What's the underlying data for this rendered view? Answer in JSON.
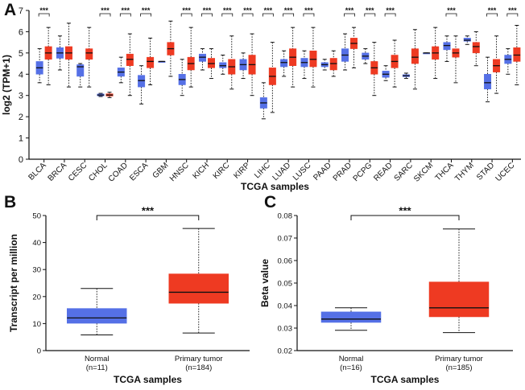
{
  "panels": {
    "A": {
      "letter": "A"
    },
    "B": {
      "letter": "B"
    },
    "C": {
      "letter": "C"
    }
  },
  "colors": {
    "normal": "#5570e6",
    "tumor": "#ee3a22"
  },
  "chart_data": [
    {
      "panel": "A",
      "type": "box",
      "xlabel": "TCGA samples",
      "ylabel": "log2 (TPM+1)",
      "ylim": [
        0,
        7
      ],
      "yticks": [
        0,
        1,
        2,
        3,
        4,
        5,
        6,
        7
      ],
      "grid": false,
      "categories": [
        "BLCA",
        "BRCA",
        "CESC",
        "CHOL",
        "COAD",
        "ESCA",
        "GBM",
        "HNSC",
        "KICH",
        "KIRC",
        "KIRP",
        "LIHC",
        "LUAD",
        "LUSC",
        "PAAD",
        "PRAD",
        "PCPG",
        "READ",
        "SARC",
        "SKCM",
        "THCA",
        "THYM",
        "STAD",
        "UCEC"
      ],
      "significance_label": "***",
      "groups": [
        {
          "category": "BLCA",
          "sig": true,
          "normal": {
            "min": 3.6,
            "q1": 4.0,
            "median": 4.3,
            "q3": 4.6,
            "max": 5.2
          },
          "tumor": {
            "min": 3.5,
            "q1": 4.7,
            "median": 5.0,
            "q3": 5.3,
            "max": 6.2
          }
        },
        {
          "category": "BRCA",
          "sig": false,
          "normal": {
            "min": 4.2,
            "q1": 4.75,
            "median": 5.0,
            "q3": 5.25,
            "max": 5.8
          },
          "tumor": {
            "min": 3.4,
            "q1": 4.7,
            "median": 5.0,
            "q3": 5.3,
            "max": 6.4
          }
        },
        {
          "category": "CESC",
          "sig": false,
          "normal": {
            "min": 3.4,
            "q1": 3.9,
            "median": 4.35,
            "q3": 4.45,
            "max": 4.5
          },
          "tumor": {
            "min": 3.4,
            "q1": 4.7,
            "median": 5.0,
            "q3": 5.2,
            "max": 6.2
          }
        },
        {
          "category": "CHOL",
          "sig": true,
          "normal": {
            "min": 2.95,
            "q1": 2.98,
            "median": 3.02,
            "q3": 3.07,
            "max": 3.1
          },
          "tumor": {
            "min": 2.9,
            "q1": 2.97,
            "median": 3.02,
            "q3": 3.08,
            "max": 3.15
          }
        },
        {
          "category": "COAD",
          "sig": true,
          "normal": {
            "min": 3.6,
            "q1": 3.9,
            "median": 4.1,
            "q3": 4.3,
            "max": 4.8
          },
          "tumor": {
            "min": 3.0,
            "q1": 4.4,
            "median": 4.7,
            "q3": 4.95,
            "max": 5.9
          }
        },
        {
          "category": "ESCA",
          "sig": true,
          "normal": {
            "min": 2.6,
            "q1": 3.4,
            "median": 3.7,
            "q3": 3.95,
            "max": 4.4
          },
          "tumor": {
            "min": 3.5,
            "q1": 4.3,
            "median": 4.6,
            "q3": 4.8,
            "max": 5.7
          }
        },
        {
          "category": "GBM",
          "sig": false,
          "normal": {
            "min": 4.6,
            "q1": 4.6,
            "median": 4.6,
            "q3": 4.6,
            "max": 4.6
          },
          "tumor": {
            "min": 3.9,
            "q1": 4.9,
            "median": 5.2,
            "q3": 5.5,
            "max": 6.5
          }
        },
        {
          "category": "HNSC",
          "sig": true,
          "normal": {
            "min": 3.0,
            "q1": 3.5,
            "median": 3.75,
            "q3": 4.0,
            "max": 4.7
          },
          "tumor": {
            "min": 3.4,
            "q1": 4.2,
            "median": 4.5,
            "q3": 4.8,
            "max": 6.2
          }
        },
        {
          "category": "KICH",
          "sig": true,
          "normal": {
            "min": 4.2,
            "q1": 4.6,
            "median": 4.8,
            "q3": 4.95,
            "max": 5.2
          },
          "tumor": {
            "min": 3.8,
            "q1": 4.3,
            "median": 4.5,
            "q3": 4.75,
            "max": 5.2
          }
        },
        {
          "category": "KIRC",
          "sig": true,
          "normal": {
            "min": 4.0,
            "q1": 4.3,
            "median": 4.4,
            "q3": 4.55,
            "max": 4.9
          },
          "tumor": {
            "min": 3.3,
            "q1": 4.0,
            "median": 4.35,
            "q3": 4.7,
            "max": 5.8
          }
        },
        {
          "category": "KIRP",
          "sig": true,
          "normal": {
            "min": 3.8,
            "q1": 4.2,
            "median": 4.45,
            "q3": 4.7,
            "max": 5.0
          },
          "tumor": {
            "min": 3.0,
            "q1": 4.0,
            "median": 4.45,
            "q3": 4.9,
            "max": 5.9
          }
        },
        {
          "category": "LIHC",
          "sig": true,
          "normal": {
            "min": 1.9,
            "q1": 2.4,
            "median": 2.65,
            "q3": 2.9,
            "max": 3.6
          },
          "tumor": {
            "min": 2.2,
            "q1": 3.5,
            "median": 3.9,
            "q3": 4.3,
            "max": 5.5
          }
        },
        {
          "category": "LUAD",
          "sig": true,
          "normal": {
            "min": 3.9,
            "q1": 4.35,
            "median": 4.55,
            "q3": 4.7,
            "max": 5.1
          },
          "tumor": {
            "min": 3.4,
            "q1": 4.4,
            "median": 4.8,
            "q3": 5.2,
            "max": 6.2
          }
        },
        {
          "category": "LUSC",
          "sig": true,
          "normal": {
            "min": 3.8,
            "q1": 4.35,
            "median": 4.55,
            "q3": 4.75,
            "max": 5.1
          },
          "tumor": {
            "min": 3.4,
            "q1": 4.35,
            "median": 4.7,
            "q3": 5.1,
            "max": 6.2
          }
        },
        {
          "category": "PAAD",
          "sig": false,
          "normal": {
            "min": 4.2,
            "q1": 4.35,
            "median": 4.45,
            "q3": 4.55,
            "max": 4.7
          },
          "tumor": {
            "min": 3.9,
            "q1": 4.2,
            "median": 4.5,
            "q3": 4.75,
            "max": 5.1
          }
        },
        {
          "category": "PRAD",
          "sig": true,
          "normal": {
            "min": 4.2,
            "q1": 4.6,
            "median": 4.9,
            "q3": 5.2,
            "max": 5.9
          },
          "tumor": {
            "min": 4.3,
            "q1": 5.2,
            "median": 5.45,
            "q3": 5.7,
            "max": 6.2
          }
        },
        {
          "category": "PCPG",
          "sig": true,
          "normal": {
            "min": 4.5,
            "q1": 4.7,
            "median": 4.85,
            "q3": 5.0,
            "max": 5.2
          },
          "tumor": {
            "min": 3.0,
            "q1": 4.0,
            "median": 4.3,
            "q3": 4.6,
            "max": 5.5
          }
        },
        {
          "category": "READ",
          "sig": true,
          "normal": {
            "min": 3.7,
            "q1": 3.85,
            "median": 4.0,
            "q3": 4.15,
            "max": 4.4
          },
          "tumor": {
            "min": 3.4,
            "q1": 4.3,
            "median": 4.6,
            "q3": 4.9,
            "max": 5.6
          }
        },
        {
          "category": "SARC",
          "sig": false,
          "normal": {
            "min": 3.8,
            "q1": 3.88,
            "median": 3.93,
            "q3": 3.98,
            "max": 4.05
          },
          "tumor": {
            "min": 3.3,
            "q1": 4.5,
            "median": 4.8,
            "q3": 5.2,
            "max": 6.1
          }
        },
        {
          "category": "SKCM",
          "sig": false,
          "normal": {
            "min": 5.0,
            "q1": 5.0,
            "median": 5.0,
            "q3": 5.0,
            "max": 5.0
          },
          "tumor": {
            "min": 3.8,
            "q1": 4.7,
            "median": 5.0,
            "q3": 5.3,
            "max": 6.2
          }
        },
        {
          "category": "THCA",
          "sig": true,
          "normal": {
            "min": 4.6,
            "q1": 5.15,
            "median": 5.35,
            "q3": 5.5,
            "max": 5.8
          },
          "tumor": {
            "min": 3.6,
            "q1": 4.8,
            "median": 5.0,
            "q3": 5.2,
            "max": 5.8
          }
        },
        {
          "category": "THYM",
          "sig": false,
          "normal": {
            "min": 5.4,
            "q1": 5.55,
            "median": 5.6,
            "q3": 5.7,
            "max": 5.8
          },
          "tumor": {
            "min": 4.4,
            "q1": 5.0,
            "median": 5.3,
            "q3": 5.5,
            "max": 6.0
          }
        },
        {
          "category": "STAD",
          "sig": true,
          "normal": {
            "min": 2.7,
            "q1": 3.3,
            "median": 3.6,
            "q3": 4.0,
            "max": 4.8
          },
          "tumor": {
            "min": 3.1,
            "q1": 4.1,
            "median": 4.4,
            "q3": 4.7,
            "max": 5.8
          }
        },
        {
          "category": "UCEC",
          "sig": true,
          "normal": {
            "min": 4.0,
            "q1": 4.5,
            "median": 4.7,
            "q3": 4.9,
            "max": 5.2
          },
          "tumor": {
            "min": 3.5,
            "q1": 4.6,
            "median": 4.9,
            "q3": 5.25,
            "max": 6.3
          }
        }
      ]
    },
    {
      "panel": "B",
      "type": "box",
      "xlabel": "TCGA samples",
      "ylabel": "Transcript per million",
      "ylim": [
        0,
        50
      ],
      "yticks": [
        0,
        10,
        20,
        30,
        40,
        50
      ],
      "grid": false,
      "significance_label": "***",
      "groups": [
        {
          "name": "Normal",
          "n_label": "(n=11)",
          "color": "normal",
          "min": 5.8,
          "q1": 10.1,
          "median": 12.1,
          "q3": 15.6,
          "max": 23.0
        },
        {
          "name": "Primary tumor",
          "n_label": "(n=184)",
          "color": "tumor",
          "min": 6.5,
          "q1": 17.5,
          "median": 21.6,
          "q3": 28.4,
          "max": 45.2
        }
      ]
    },
    {
      "panel": "C",
      "type": "box",
      "xlabel": "TCGA samples",
      "ylabel": "Beta value",
      "ylim": [
        0.02,
        0.08
      ],
      "yticks": [
        "0.02",
        "0.03",
        "0.04",
        "0.05",
        "0.06",
        "0.07",
        "0.08"
      ],
      "grid": false,
      "significance_label": "***",
      "groups": [
        {
          "name": "Normal",
          "n_label": "(n=16)",
          "color": "normal",
          "min": 0.029,
          "q1": 0.0325,
          "median": 0.034,
          "q3": 0.0372,
          "max": 0.039
        },
        {
          "name": "Primary tumor",
          "n_label": "(n=185)",
          "color": "tumor",
          "min": 0.028,
          "q1": 0.035,
          "median": 0.039,
          "q3": 0.0505,
          "max": 0.074
        }
      ]
    }
  ]
}
